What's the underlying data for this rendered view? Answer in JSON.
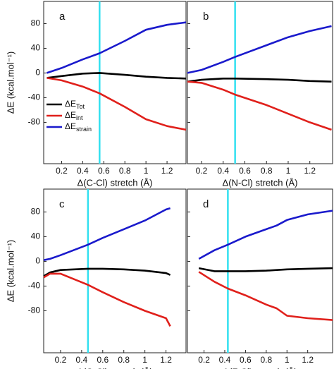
{
  "chart_data": [
    {
      "type": "line",
      "panel_label": "a",
      "xlabel": "Δ(C-Cl) stretch (Å)",
      "ylabel": "ΔE (kcal.mol⁻¹)",
      "xlim": [
        0.03,
        1.38
      ],
      "ylim": [
        -147,
        116
      ],
      "xticks": [
        0.2,
        0.4,
        0.6,
        0.8,
        1.0,
        1.2
      ],
      "yticks": [
        -80,
        -40,
        0,
        40,
        80
      ],
      "vline": {
        "x": 0.56,
        "color": "#33e0f0"
      },
      "legend": "left",
      "x": [
        0.06,
        0.2,
        0.4,
        0.56,
        0.8,
        1.0,
        1.2,
        1.38
      ],
      "series": [
        {
          "name": "ΔE",
          "subscript": "Tot",
          "color": "#000000",
          "values": [
            -8,
            -5,
            -1,
            0,
            -3,
            -6,
            -8,
            -9
          ]
        },
        {
          "name": "ΔE",
          "subscript": "int",
          "color": "#e0201b",
          "values": [
            -8,
            -12,
            -22,
            -33,
            -55,
            -75,
            -86,
            -92
          ]
        },
        {
          "name": "ΔE",
          "subscript": "strain",
          "color": "#1a1acc",
          "values": [
            0,
            8,
            22,
            32,
            52,
            70,
            78,
            82
          ]
        }
      ]
    },
    {
      "type": "line",
      "panel_label": "b",
      "xlabel": "Δ(N-Cl) stretch (Å)",
      "xlim": [
        0.07,
        1.41
      ],
      "ylim": [
        -147,
        116
      ],
      "xticks": [
        0.2,
        0.4,
        0.6,
        0.8,
        1.0,
        1.2
      ],
      "yticks": [
        -80,
        -40,
        0,
        40,
        80
      ],
      "vline": {
        "x": 0.51,
        "color": "#33e0f0"
      },
      "x": [
        0.07,
        0.2,
        0.4,
        0.51,
        0.8,
        1.0,
        1.2,
        1.4
      ],
      "series": [
        {
          "color": "#000000",
          "values": [
            -14,
            -11,
            -9,
            -9,
            -10,
            -11,
            -13,
            -14
          ]
        },
        {
          "color": "#e0201b",
          "values": [
            -14,
            -16,
            -27,
            -35,
            -52,
            -66,
            -80,
            -92
          ]
        },
        {
          "color": "#1a1acc",
          "values": [
            0,
            5,
            18,
            26,
            45,
            58,
            68,
            76
          ]
        }
      ]
    },
    {
      "type": "line",
      "panel_label": "c",
      "xlabel": "Δ(O-Cl) stretch (Å)",
      "ylabel": "ΔE (kcal.mol⁻¹)",
      "xlim": [
        0.04,
        1.39
      ],
      "ylim": [
        -148,
        117
      ],
      "xticks": [
        0.2,
        0.4,
        0.6,
        0.8,
        1.0,
        1.2
      ],
      "yticks": [
        -80,
        -40,
        0,
        40,
        80
      ],
      "vline": {
        "x": 0.46,
        "color": "#33e0f0"
      },
      "x": [
        0.04,
        0.1,
        0.2,
        0.46,
        0.6,
        0.8,
        1.0,
        1.2,
        1.24
      ],
      "series": [
        {
          "color": "#000000",
          "values": [
            -24,
            -18,
            -14,
            -12,
            -12,
            -13,
            -15,
            -19,
            -22
          ]
        },
        {
          "color": "#e0201b",
          "values": [
            -26,
            -20,
            -20,
            -38,
            -50,
            -66,
            -80,
            -92,
            -105
          ]
        },
        {
          "color": "#1a1acc",
          "values": [
            2,
            4,
            10,
            27,
            38,
            52,
            66,
            84,
            86
          ]
        }
      ]
    },
    {
      "type": "line",
      "panel_label": "d",
      "xlabel": "Δ(F-Cl) stretch (Å)",
      "xlim": [
        0.04,
        1.44
      ],
      "ylim": [
        -148,
        117
      ],
      "xticks": [
        0.2,
        0.4,
        0.6,
        0.8,
        1.0,
        1.2
      ],
      "yticks": [
        -80,
        -40,
        0,
        40,
        80
      ],
      "vline": {
        "x": 0.43,
        "color": "#33e0f0"
      },
      "x": [
        0.15,
        0.3,
        0.43,
        0.6,
        0.8,
        0.9,
        1.0,
        1.2,
        1.44
      ],
      "series": [
        {
          "color": "#000000",
          "values": [
            -11,
            -16,
            -16,
            -16,
            -15,
            -14,
            -13,
            -12,
            -11
          ]
        },
        {
          "color": "#e0201b",
          "values": [
            -17,
            -33,
            -44,
            -55,
            -70,
            -76,
            -88,
            -92,
            -95
          ]
        },
        {
          "color": "#1a1acc",
          "values": [
            4,
            18,
            27,
            40,
            52,
            58,
            67,
            76,
            82
          ]
        }
      ]
    }
  ]
}
